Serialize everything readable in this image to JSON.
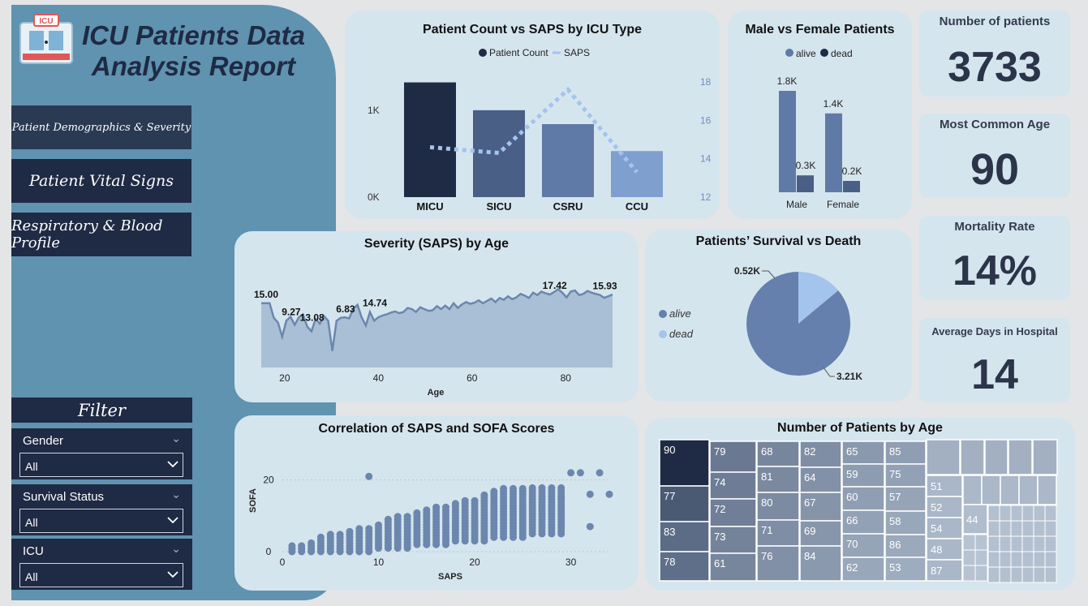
{
  "report": {
    "title_line1": "ICU Patients Data",
    "title_line2": "Analysis Report",
    "logo_text": "ICU"
  },
  "nav": [
    {
      "label": "Patient Demographics & Severity"
    },
    {
      "label": "Patient Vital Signs"
    },
    {
      "label": "Respiratory & Blood Profile"
    }
  ],
  "filter": {
    "title": "Filter",
    "gender": {
      "label": "Gender",
      "value": "All"
    },
    "survival": {
      "label": "Survival Status",
      "value": "All"
    },
    "icu": {
      "label": "ICU",
      "value": "All"
    }
  },
  "kpis": [
    {
      "label": "Number of patients",
      "value": "3733"
    },
    {
      "label": "Most Common Age",
      "value": "90"
    },
    {
      "label": "Mortality Rate",
      "value": "14%"
    },
    {
      "label": "Average Days in Hospital",
      "value": "14"
    }
  ],
  "colors": {
    "navy": "#1f2a44",
    "slate": "#4a5f86",
    "mid": "#5f7aa6",
    "light": "#7f9fcf",
    "pale": "#a3c4ec",
    "card": "#d5e5ee",
    "panel": "#5f93b0"
  },
  "chart_data": [
    {
      "id": "icu",
      "type": "bar",
      "title": "Patient Count vs SAPS by ICU Type",
      "legend": [
        "Patient Count",
        "SAPS"
      ],
      "categories": [
        "MICU",
        "SICU",
        "CSRU",
        "CCU"
      ],
      "y_ticks": [
        "0K",
        "1K"
      ],
      "y2_ticks": [
        "12",
        "14",
        "16",
        "18"
      ],
      "series": [
        {
          "name": "Patient Count",
          "values": [
            1320,
            1000,
            840,
            530
          ]
        },
        {
          "name": "SAPS",
          "values": [
            14.6,
            14.3,
            17.6,
            13.3
          ]
        }
      ],
      "ylim": [
        0,
        1400
      ],
      "y2lim": [
        12,
        18
      ]
    },
    {
      "id": "gender",
      "type": "bar",
      "title": "Male vs Female Patients",
      "legend": [
        "alive",
        "dead"
      ],
      "categories": [
        "Male",
        "Female"
      ],
      "series": [
        {
          "name": "alive",
          "values": [
            1.8,
            1.4
          ],
          "labels": [
            "1.8K",
            "1.4K"
          ]
        },
        {
          "name": "dead",
          "values": [
            0.3,
            0.2
          ],
          "labels": [
            "0.3K",
            "0.2K"
          ]
        }
      ]
    },
    {
      "id": "age",
      "type": "area",
      "title": "Severity (SAPS) by Age",
      "xlabel": "Age",
      "x_ticks": [
        "20",
        "40",
        "60",
        "80"
      ],
      "xlim": [
        15,
        90
      ],
      "ylim": [
        4,
        19
      ],
      "values": [
        15.0,
        15.0,
        15.0,
        12.5,
        11.7,
        9.27,
        12.0,
        12.7,
        11.3,
        12.6,
        13.08,
        11.0,
        10.2,
        12.3,
        11.5,
        12.8,
        12.0,
        6.83,
        12.0,
        12.5,
        12.6,
        12.4,
        14.0,
        14.74,
        12.6,
        11.2,
        13.5,
        12.0,
        12.6,
        12.9,
        13.1,
        13.4,
        13.6,
        13.3,
        13.5,
        14.2,
        14.0,
        13.5,
        14.3,
        14.0,
        13.7,
        13.8,
        14.5,
        14.0,
        14.6,
        14.0,
        15.0,
        14.2,
        14.8,
        15.2,
        14.9,
        15.1,
        15.5,
        15.0,
        15.4,
        15.8,
        15.2,
        15.9,
        15.6,
        16.2,
        15.7,
        16.0,
        16.6,
        16.3,
        15.9,
        16.8,
        16.4,
        17.0,
        16.7,
        16.5,
        16.9,
        17.42,
        16.8,
        16.0,
        17.0,
        17.2,
        16.4,
        16.6,
        17.1,
        16.8,
        16.6,
        16.4,
        15.93,
        16.2,
        16.5
      ],
      "annotations": [
        {
          "x": 15,
          "label": "15.00"
        },
        {
          "x": 20,
          "label": "9.27"
        },
        {
          "x": 25,
          "label": "13.08"
        },
        {
          "x": 32,
          "label": "6.83"
        },
        {
          "x": 38,
          "label": "14.74"
        },
        {
          "x": 77,
          "label": "17.42"
        },
        {
          "x": 87,
          "label": "15.93"
        }
      ]
    },
    {
      "id": "survival",
      "type": "pie",
      "title": "Patients’ Survival vs Death",
      "legend": [
        "alive",
        "dead"
      ],
      "values": [
        3.21,
        0.52
      ],
      "labels": [
        "3.21K",
        "0.52K"
      ]
    },
    {
      "id": "scatter",
      "type": "scatter",
      "title": "Correlation of SAPS and SOFA Scores",
      "xlabel": "SAPS",
      "ylabel": "SOFA",
      "x_ticks": [
        "0",
        "10",
        "20",
        "30"
      ],
      "y_ticks": [
        "0",
        "20"
      ],
      "xlim": [
        0,
        34
      ],
      "ylim": [
        0,
        24
      ],
      "extra_points": [
        [
          9,
          21
        ],
        [
          30,
          22
        ],
        [
          31,
          22
        ],
        [
          33,
          22
        ],
        [
          32,
          16
        ],
        [
          34,
          16
        ],
        [
          29,
          15
        ],
        [
          32,
          7
        ]
      ]
    },
    {
      "id": "treemap",
      "type": "heatmap",
      "title": "Number of Patients by Age",
      "labels": [
        "90",
        "77",
        "83",
        "78",
        "79",
        "74",
        "72",
        "73",
        "61",
        "68",
        "81",
        "80",
        "71",
        "76",
        "82",
        "64",
        "67",
        "69",
        "84",
        "65",
        "59",
        "60",
        "66",
        "70",
        "62",
        "85",
        "75",
        "57",
        "58",
        "86",
        "53",
        "51",
        "52",
        "54",
        "48",
        "87",
        "44"
      ]
    }
  ]
}
